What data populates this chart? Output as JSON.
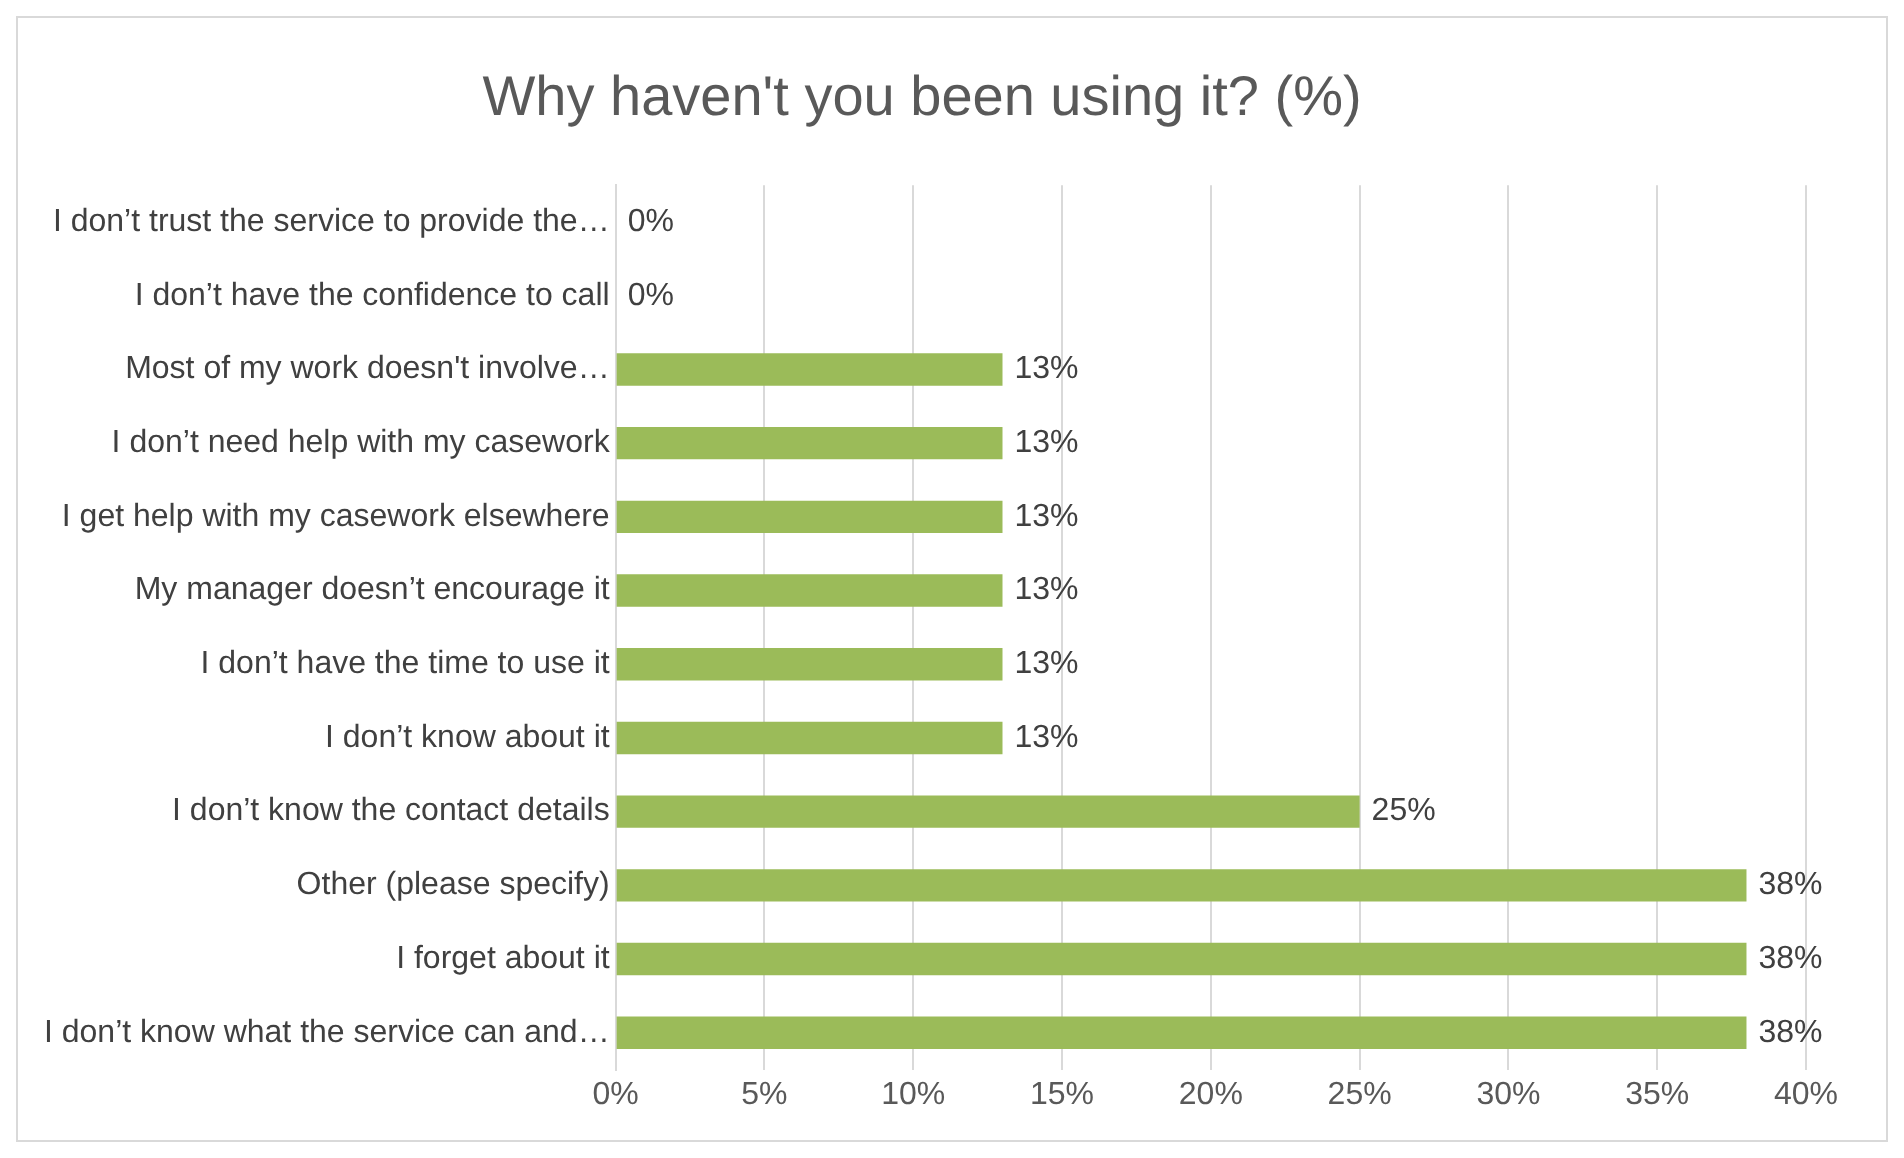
{
  "chart_data": {
    "type": "bar",
    "orientation": "horizontal",
    "title": "Why haven't you been using it? (%)",
    "categories": [
      "I don’t trust the service to provide the…",
      "I don’t have the confidence to call",
      "Most of my work doesn't involve…",
      "I don’t need help with my casework",
      "I get help with my casework elsewhere",
      "My manager doesn’t encourage it",
      "I don’t have the time to use it",
      "I don’t know about it",
      "I don’t know the contact details",
      "Other (please specify)",
      "I forget about it",
      "I don’t know what the service can and…"
    ],
    "values": [
      0,
      0,
      13,
      13,
      13,
      13,
      13,
      13,
      25,
      38,
      38,
      38
    ],
    "value_labels": [
      "0%",
      "0%",
      "13%",
      "13%",
      "13%",
      "13%",
      "13%",
      "13%",
      "25%",
      "38%",
      "38%",
      "38%"
    ],
    "color": "#9bbb59",
    "xlim": [
      0,
      40
    ],
    "xticks": [
      {
        "value": 0,
        "label": "0%"
      },
      {
        "value": 5,
        "label": "5%"
      },
      {
        "value": 10,
        "label": "10%"
      },
      {
        "value": 15,
        "label": "15%"
      },
      {
        "value": 20,
        "label": "20%"
      },
      {
        "value": 25,
        "label": "25%"
      },
      {
        "value": 30,
        "label": "30%"
      },
      {
        "value": 35,
        "label": "35%"
      },
      {
        "value": 40,
        "label": "40%"
      }
    ],
    "grid": "x",
    "legend": false
  }
}
